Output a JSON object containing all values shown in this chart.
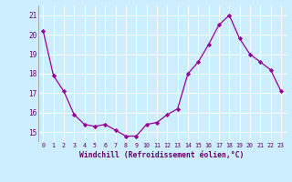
{
  "x": [
    0,
    1,
    2,
    3,
    4,
    5,
    6,
    7,
    8,
    9,
    10,
    11,
    12,
    13,
    14,
    15,
    16,
    17,
    18,
    19,
    20,
    21,
    22,
    23
  ],
  "y": [
    20.2,
    17.9,
    17.1,
    15.9,
    15.4,
    15.3,
    15.4,
    15.1,
    14.8,
    14.8,
    15.4,
    15.5,
    15.9,
    16.2,
    18.0,
    18.6,
    19.5,
    20.5,
    21.0,
    19.8,
    19.0,
    18.6,
    18.2,
    17.1
  ],
  "line_color": "#990099",
  "marker": "D",
  "marker_size": 2.2,
  "background_color": "#cceeff",
  "grid_color": "#ffffff",
  "xlabel": "Windchill (Refroidissement éolien,°C)",
  "xlabel_color": "#660066",
  "tick_color": "#660066",
  "ylim": [
    14.5,
    21.5
  ],
  "xlim": [
    -0.5,
    23.5
  ],
  "yticks": [
    15,
    16,
    17,
    18,
    19,
    20,
    21
  ],
  "xticks": [
    0,
    1,
    2,
    3,
    4,
    5,
    6,
    7,
    8,
    9,
    10,
    11,
    12,
    13,
    14,
    15,
    16,
    17,
    18,
    19,
    20,
    21,
    22,
    23
  ]
}
